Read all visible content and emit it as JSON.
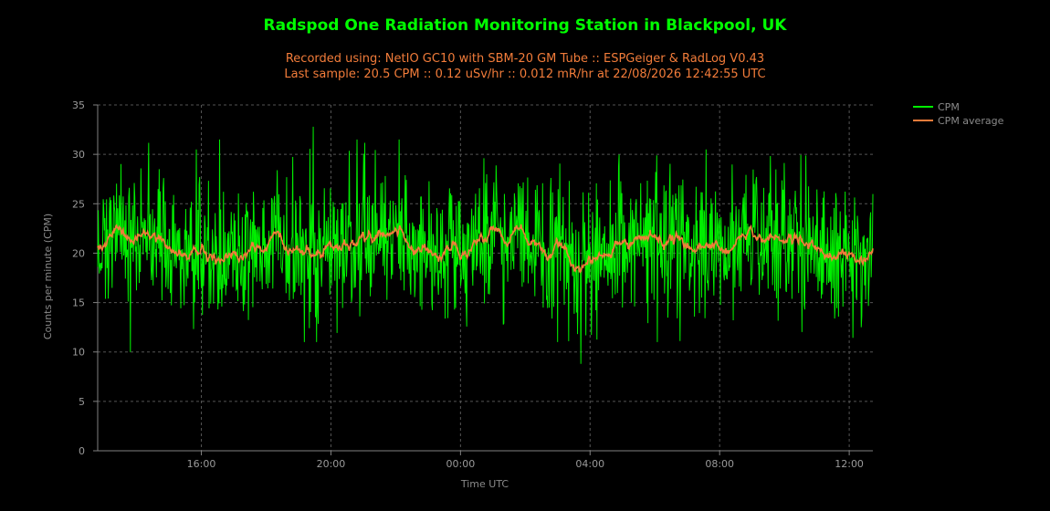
{
  "chart_data": {
    "type": "line",
    "title": "Radspod One Radiation Monitoring Station in Blackpool, UK",
    "subtitle_lines": [
      "Recorded using: NetIO GC10 with SBM-20 GM Tube :: ESPGeiger & RadLog V0.43",
      "Last sample: 20.5 CPM :: 0.12 uSv/hr :: 0.012 mR/hr at 22/08/2026 12:42:55 UTC"
    ],
    "xlabel": "Time UTC",
    "ylabel": "Counts per minute (CPM)",
    "x_range_hours": [
      12.8,
      36.73
    ],
    "ylim": [
      0,
      35
    ],
    "y_ticks": [
      0,
      5,
      10,
      15,
      20,
      25,
      30,
      35
    ],
    "x_ticks": [
      {
        "label": "16:00",
        "hour": 16
      },
      {
        "label": "20:00",
        "hour": 20
      },
      {
        "label": "00:00",
        "hour": 24
      },
      {
        "label": "04:00",
        "hour": 28
      },
      {
        "label": "08:00",
        "hour": 32
      },
      {
        "label": "12:00",
        "hour": 36
      }
    ],
    "grid": true,
    "legend_position": "right",
    "series": [
      {
        "name": "CPM",
        "color": "#00ee00",
        "sample_count": 1400,
        "mean": 20.6,
        "min": 8.8,
        "max": 32.8
      },
      {
        "name": "CPM average",
        "color": "#f27c3a"
      }
    ]
  }
}
